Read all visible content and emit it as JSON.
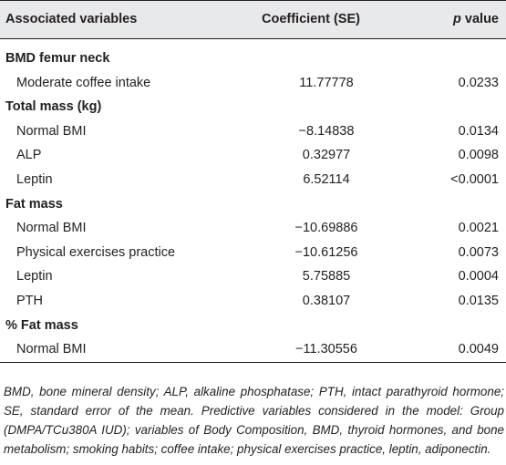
{
  "table": {
    "headers": {
      "variables": "Associated variables",
      "coefficient": "Coefficient (SE)",
      "p_italic": "p",
      "p_rest": " value"
    },
    "rows": [
      {
        "type": "section",
        "label": "BMD femur neck"
      },
      {
        "type": "item",
        "label": "Moderate coffee intake",
        "coef": "11.77778",
        "p": "0.0233"
      },
      {
        "type": "section",
        "label": "Total mass (kg)"
      },
      {
        "type": "item",
        "label": "Normal BMI",
        "coef": "−8.14838",
        "p": "0.0134"
      },
      {
        "type": "item",
        "label": "ALP",
        "coef": "0.32977",
        "p": "0.0098"
      },
      {
        "type": "item",
        "label": "Leptin",
        "coef": "6.52114",
        "p": "<0.0001"
      },
      {
        "type": "section",
        "label": "Fat mass"
      },
      {
        "type": "item",
        "label": "Normal BMI",
        "coef": "−10.69886",
        "p": "0.0021"
      },
      {
        "type": "item",
        "label": "Physical exercises practice",
        "coef": "−10.61256",
        "p": "0.0073"
      },
      {
        "type": "item",
        "label": "Leptin",
        "coef": "5.75885",
        "p": "0.0004"
      },
      {
        "type": "item",
        "label": "PTH",
        "coef": "0.38107",
        "p": "0.0135"
      },
      {
        "type": "section",
        "label": "% Fat mass"
      },
      {
        "type": "item",
        "label": "Normal BMI",
        "coef": "−11.30556",
        "p": "0.0049"
      }
    ]
  },
  "footnote": "BMD, bone mineral density; ALP, alkaline phosphatase; PTH, intact parathyroid hormone; SE, standard error of the mean. Predictive variables considered in the model: Group (DMPA/TCu380A IUD); variables of Body Composition, BMD, thyroid hormones, and bone metabolism; smoking habits; coffee intake; physical exercises practice, leptin, adiponectin."
}
